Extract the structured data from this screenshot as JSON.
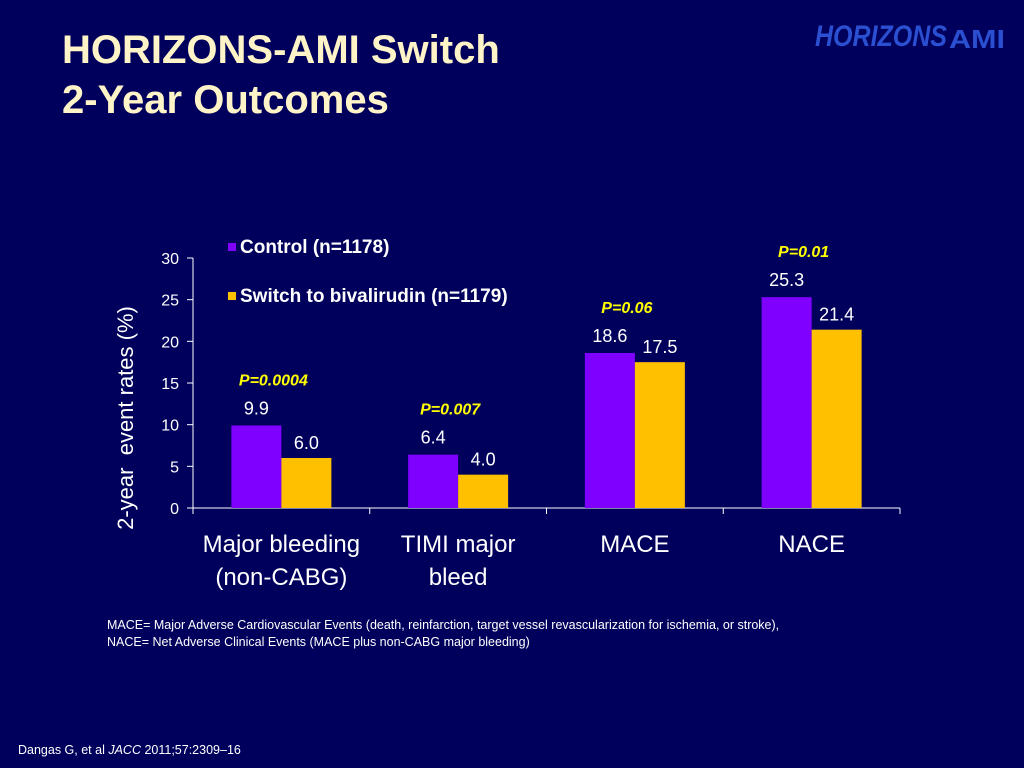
{
  "slide": {
    "title_line1": "HORIZONS-AMI Switch",
    "title_line2": "2-Year Outcomes",
    "logo": {
      "text_main": "HORIZONS",
      "text_accent": "AMI"
    },
    "footnote_line1": "MACE= Major Adverse Cardiovascular Events (death, reinfarction, target vessel revascularization for ischemia, or stroke),",
    "footnote_line2": "NACE= Net Adverse Clinical Events (MACE plus non-CABG major bleeding)",
    "citation": {
      "authors": "Dangas G, et al ",
      "journal": "JACC",
      "details": " 2011;57:2309–16"
    }
  },
  "colors": {
    "background": "#00005c",
    "title": "#fff4c8",
    "control": "#7f00ff",
    "switch": "#ffc000",
    "p_value": "#ffff00",
    "logo": "#2a4fd0"
  },
  "chart_data": {
    "type": "bar",
    "categories": [
      [
        "Major bleeding",
        "(non-CABG)"
      ],
      [
        "TIMI major",
        "bleed"
      ],
      [
        "MACE"
      ],
      [
        "NACE"
      ]
    ],
    "series": [
      {
        "name": "Control (n=1178)",
        "values": [
          9.9,
          6.4,
          18.6,
          25.3
        ],
        "labels": [
          "9.9",
          "6.4",
          "18.6",
          "25.3"
        ]
      },
      {
        "name": "Switch to bivalirudin (n=1179)",
        "values": [
          6.0,
          4.0,
          17.5,
          21.4
        ],
        "labels": [
          "6.0",
          "4.0",
          "17.5",
          "21.4"
        ]
      }
    ],
    "p_values": [
      "P=0.0004",
      "P=0.007",
      "P=0.06",
      "P=0.01"
    ],
    "ylabel": "2-year  event rates (%)",
    "ylim": [
      0,
      30
    ],
    "yticks": [
      0,
      5,
      10,
      15,
      20,
      25,
      30
    ],
    "legend_position": "top-left",
    "grid": false
  }
}
